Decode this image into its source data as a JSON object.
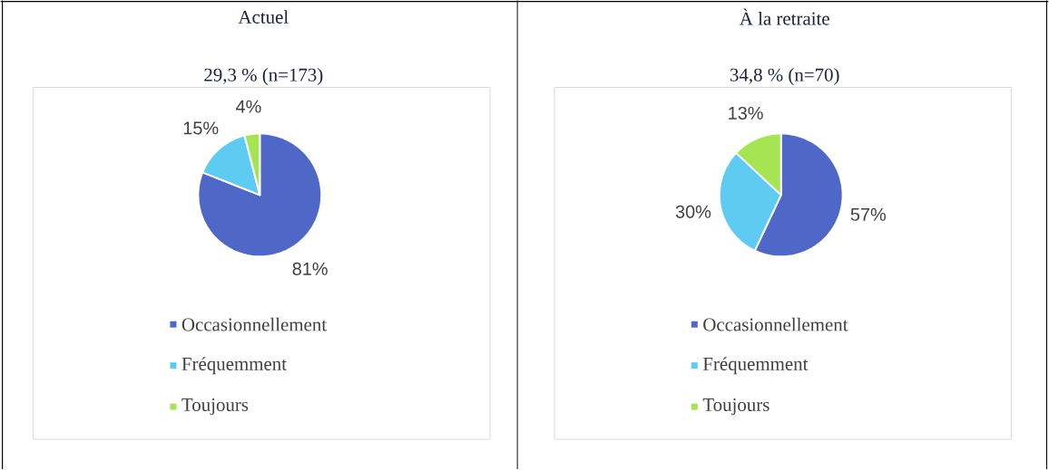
{
  "chart_data": [
    {
      "type": "pie",
      "title": "Actuel",
      "subtitle": "29,3 % (n=173)",
      "categories": [
        "Occasionnellement",
        "Fréquemment",
        "Toujours"
      ],
      "values": [
        81,
        15,
        4
      ],
      "value_labels": [
        "81%",
        "15%",
        "4%"
      ],
      "colors": [
        "#4f67c6",
        "#60cbf2",
        "#a5e453"
      ],
      "legend": "bottom"
    },
    {
      "type": "pie",
      "title": "À la retraite",
      "subtitle": "34,8 % (n=70)",
      "categories": [
        "Occasionnellement",
        "Fréquemment",
        "Toujours"
      ],
      "values": [
        57,
        30,
        13
      ],
      "value_labels": [
        "57%",
        "30%",
        "13%"
      ],
      "colors": [
        "#4f67c6",
        "#60cbf2",
        "#a5e453"
      ],
      "legend": "bottom"
    }
  ]
}
